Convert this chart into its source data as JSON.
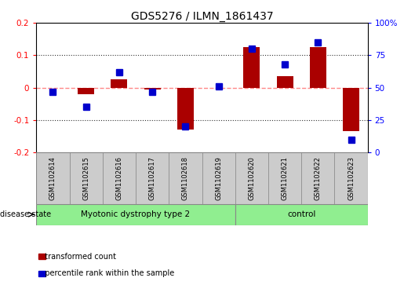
{
  "title": "GDS5276 / ILMN_1861437",
  "samples": [
    "GSM1102614",
    "GSM1102615",
    "GSM1102616",
    "GSM1102617",
    "GSM1102618",
    "GSM1102619",
    "GSM1102620",
    "GSM1102621",
    "GSM1102622",
    "GSM1102623"
  ],
  "red_values": [
    0.0,
    -0.02,
    0.025,
    -0.005,
    -0.13,
    0.0,
    0.125,
    0.035,
    0.125,
    -0.135
  ],
  "blue_values": [
    47,
    35,
    62,
    47,
    20,
    51,
    80,
    68,
    85,
    10
  ],
  "group1_label": "Myotonic dystrophy type 2",
  "group1_count": 6,
  "group2_label": "control",
  "group2_count": 4,
  "group_color": "#90EE90",
  "ylim_left": [
    -0.2,
    0.2
  ],
  "ylim_right": [
    0,
    100
  ],
  "yticks_left": [
    -0.2,
    -0.1,
    0.0,
    0.1,
    0.2
  ],
  "ytick_labels_left": [
    "-0.2",
    "-0.1",
    "0",
    "0.1",
    "0.2"
  ],
  "yticks_right": [
    0,
    25,
    50,
    75,
    100
  ],
  "ytick_labels_right": [
    "0",
    "25",
    "50",
    "75",
    "100%"
  ],
  "red_color": "#AA0000",
  "blue_color": "#0000CC",
  "zero_line_color": "#FF8888",
  "dotted_line_color": "#333333",
  "bg_label": "#CCCCCC",
  "legend_red": "transformed count",
  "legend_blue": "percentile rank within the sample",
  "bar_width": 0.5,
  "marker_size": 6,
  "disease_state_label": "disease state"
}
